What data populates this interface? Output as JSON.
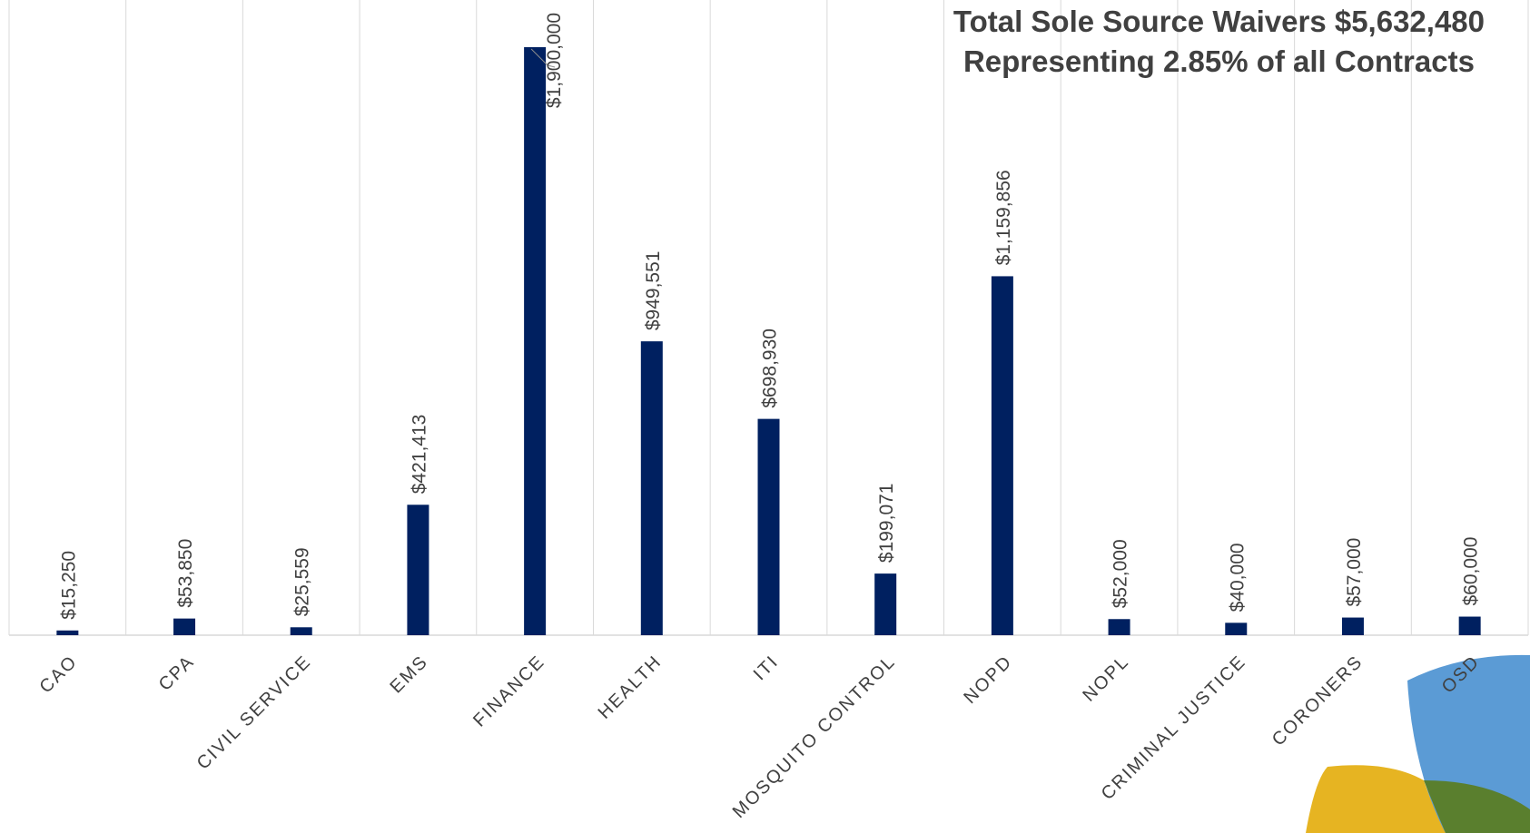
{
  "chart_data": {
    "type": "bar",
    "title": "Total Sole Source Waivers $5,632,480",
    "subtitle": "Representing 2.85% of all Contracts",
    "xlabel": "",
    "ylabel": "",
    "ylim": [
      0,
      2000000
    ],
    "grid": "vertical",
    "legend": "none",
    "categories": [
      "CAO",
      "CPA",
      "CIVIL SERVICE",
      "EMS",
      "FINANCE",
      "HEALTH",
      "ITI",
      "MOSQUITO CONTROL",
      "NOPD",
      "NOPL",
      "CRIMINAL JUSTICE",
      "CORONERS",
      "OSD"
    ],
    "values": [
      15250,
      53850,
      25559,
      421413,
      1900000,
      949551,
      698930,
      199071,
      1159856,
      52000,
      40000,
      57000,
      60000
    ],
    "data_labels": [
      "$15,250",
      "$53,850",
      "$25,559",
      "$421,413",
      "$1,900,000",
      "$949,551",
      "$698,930",
      "$199,071",
      "$1,159,856",
      "$52,000",
      "$40,000",
      "$57,000",
      "$60,000"
    ]
  },
  "colors": {
    "bar": "#002060",
    "grid": "#d9d9d9",
    "text": "#404040",
    "decor_blue": "#5b9bd5",
    "decor_gold": "#e6b422",
    "decor_green": "#5a7f2e"
  }
}
